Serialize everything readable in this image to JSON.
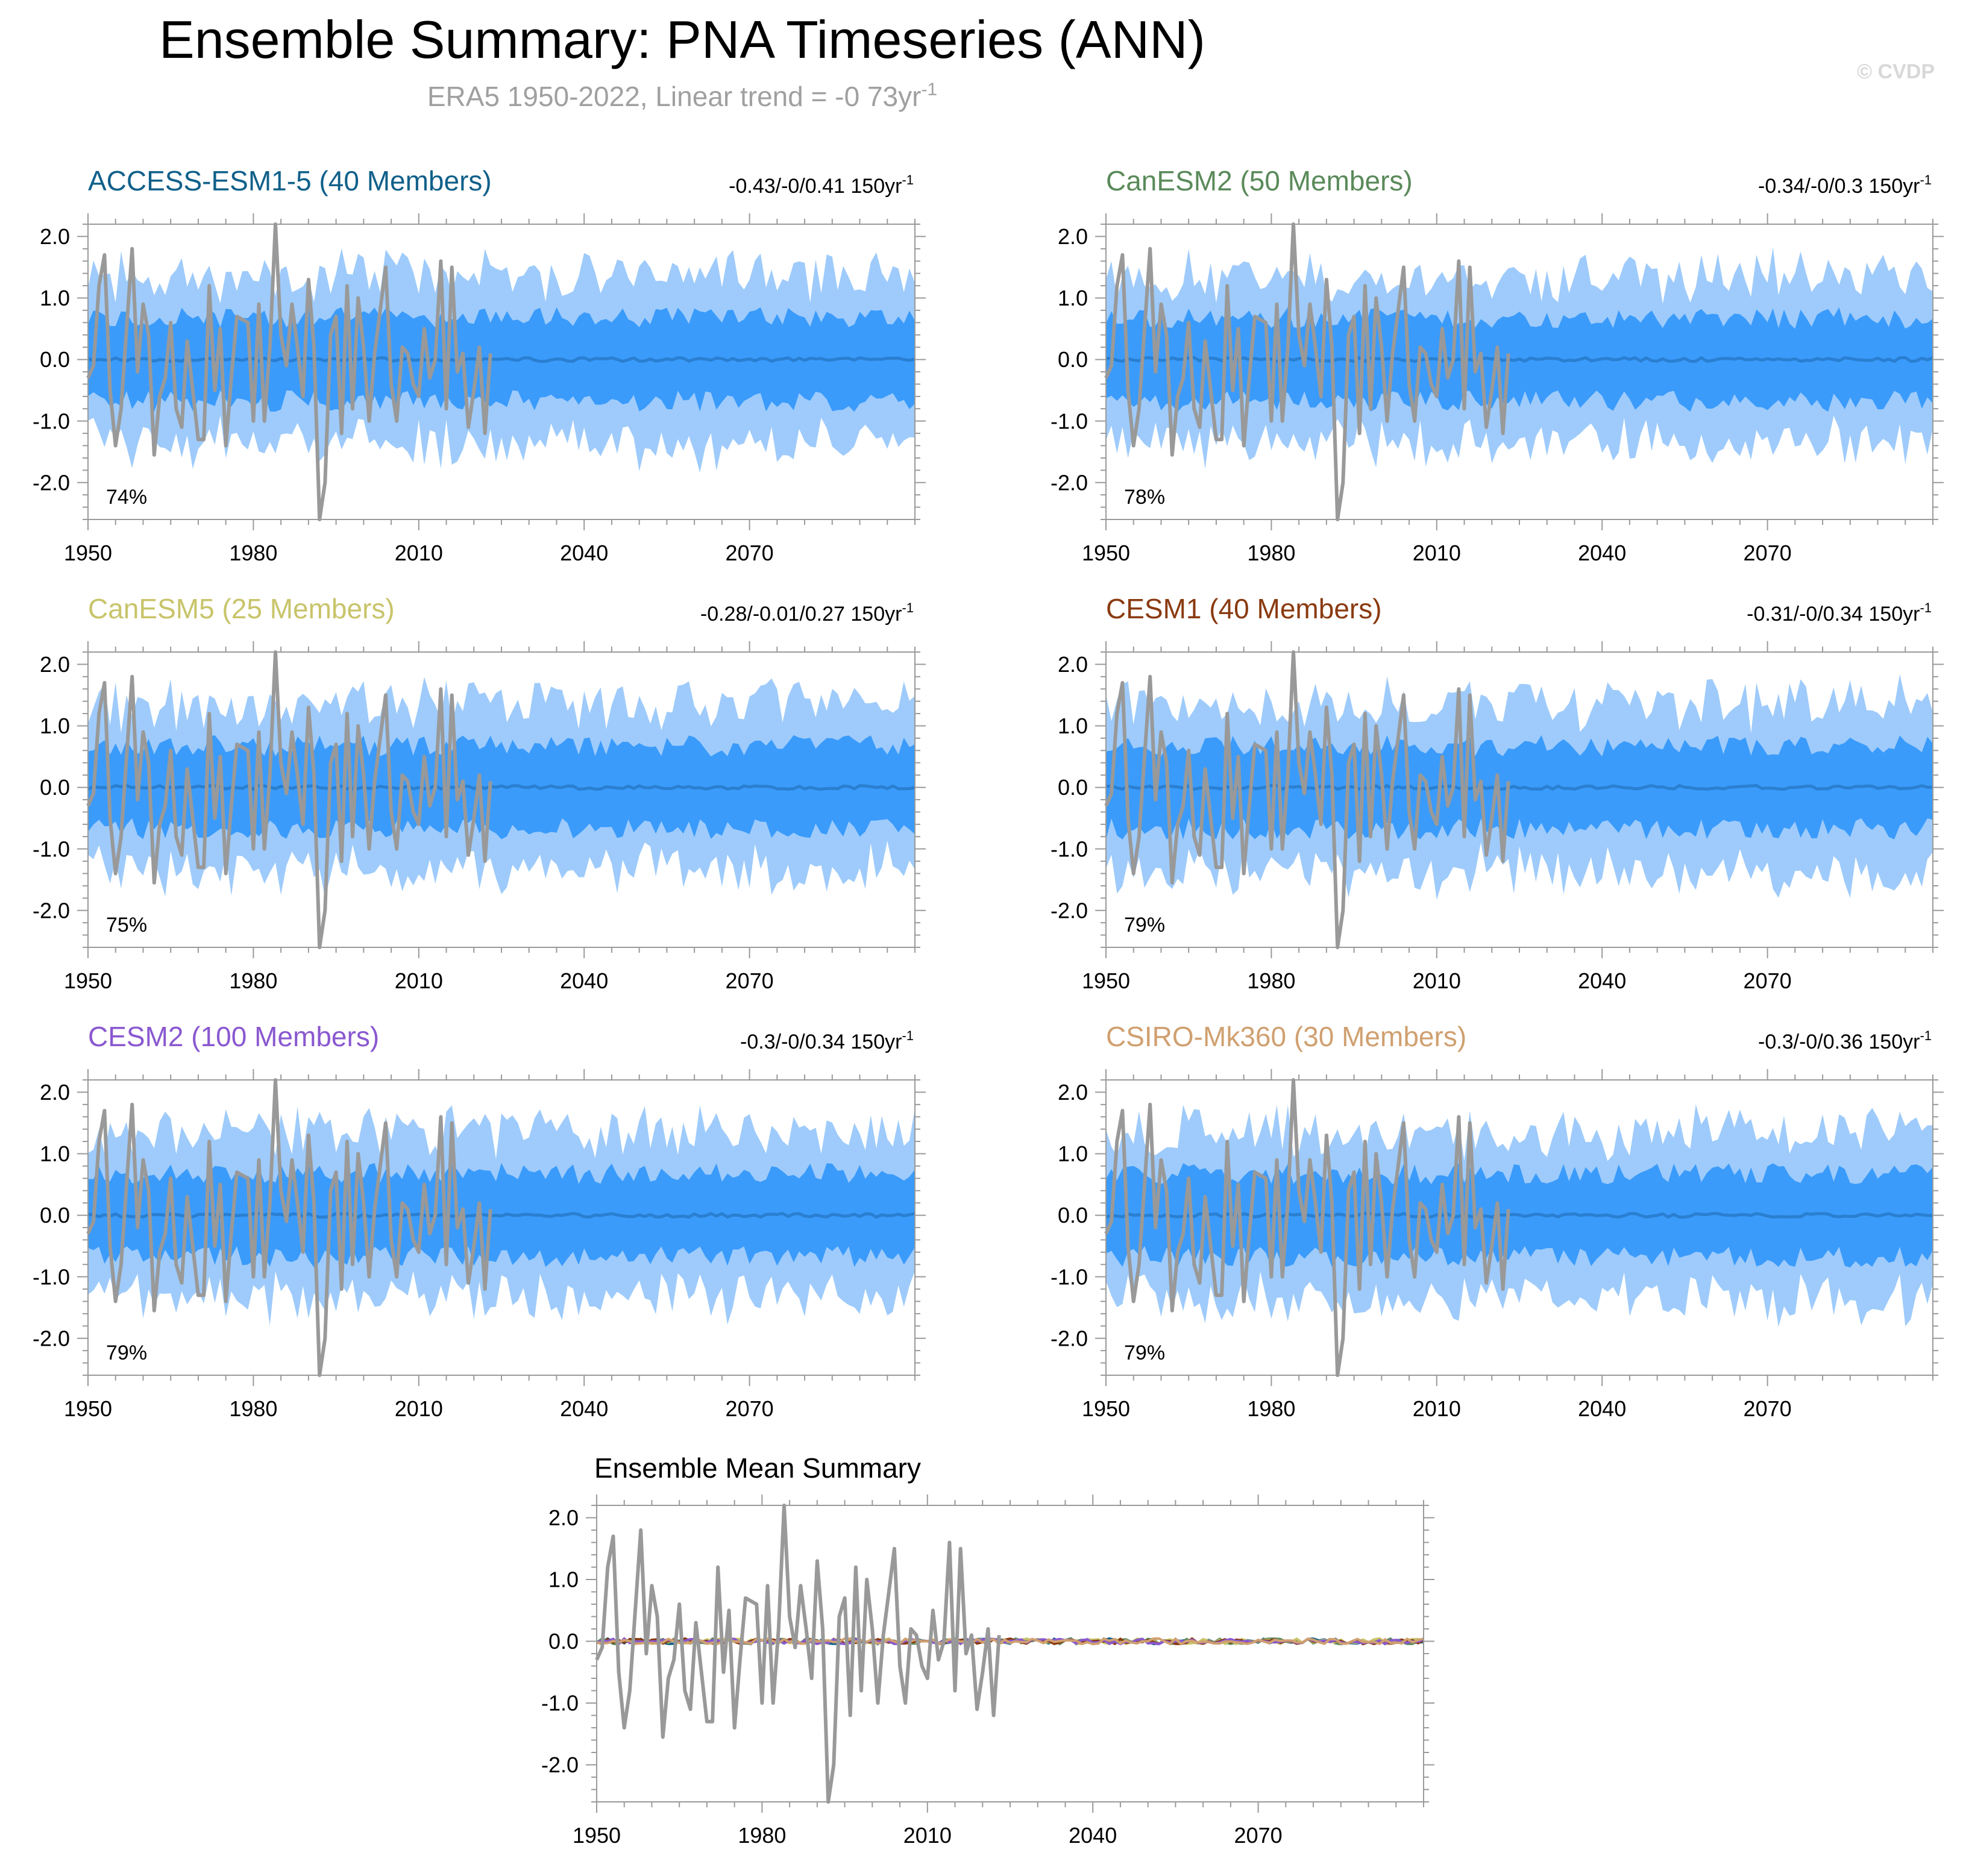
{
  "title": "Ensemble Summary: PNA Timeseries (ANN)",
  "subtitle": {
    "text": "ERA5 1950-2022, Linear trend = -0 73yr",
    "sup": "-1"
  },
  "watermark": "© CVDP",
  "colors": {
    "outer_band": "#9ecbfb",
    "inner_band": "#3a9bfb",
    "ensemble_mean": "#2a7fd0",
    "observations": "#999999",
    "axis": "#9a9a9a",
    "subtitle": "#a0a0a0",
    "watermark": "#d8d8d8"
  },
  "chart_data": {
    "type": "area",
    "x_range": [
      1950,
      2100
    ],
    "x_ticks": [
      1950,
      1980,
      2010,
      2040,
      2070
    ],
    "y_range": [
      -2.6,
      2.2
    ],
    "y_ticks": [
      2.0,
      1.0,
      0.0,
      -1.0,
      -2.0
    ],
    "y_tick_labels": [
      "2.0",
      "1.0",
      "0.0",
      "-1.0",
      "-2.0"
    ],
    "observations": {
      "name": "ERA5",
      "years": [
        1950,
        2022
      ],
      "values": [
        -0.3,
        -0.1,
        1.2,
        1.7,
        -0.5,
        -1.4,
        -0.8,
        0.5,
        1.8,
        -0.2,
        0.9,
        0.4,
        -1.55,
        -0.6,
        -0.3,
        0.6,
        -0.8,
        -1.1,
        0.3,
        -0.5,
        -1.3,
        -1.3,
        1.2,
        -0.5,
        0.5,
        -1.4,
        -0.3,
        0.7,
        0.65,
        0.6,
        -1.0,
        0.9,
        -1.0,
        0.2,
        2.2,
        0.4,
        -0.1,
        0.9,
        0.2,
        -0.6,
        1.3,
        0.2,
        -2.6,
        -2.0,
        0.4,
        0.7,
        -1.2,
        1.2,
        -0.8,
        1.0,
        0.2,
        -1.0,
        0.1,
        0.8,
        1.5,
        -0.4,
        -1.0,
        0.2,
        0.1,
        -0.4,
        -0.6,
        0.5,
        -0.3,
        0.0,
        1.6,
        -0.8,
        1.5,
        -0.2,
        0.1,
        -1.1,
        -0.5,
        0.2,
        -1.2,
        0.1
      ]
    },
    "panels": [
      {
        "model": "ACCESS-ESM1-5 (40 Members)",
        "title_color": "#10608a",
        "trend_text": "-0.43/-0/0.41 150yr",
        "trend_sup": "-1",
        "percent": "74%",
        "seed": 11
      },
      {
        "model": "CanESM2 (50 Members)",
        "title_color": "#5a8a5a",
        "trend_text": "-0.34/-0/0.3 150yr",
        "trend_sup": "-1",
        "percent": "78%",
        "seed": 23
      },
      {
        "model": "CanESM5 (25 Members)",
        "title_color": "#c8c46a",
        "trend_text": "-0.28/-0.01/0.27 150yr",
        "trend_sup": "-1",
        "percent": "75%",
        "seed": 37
      },
      {
        "model": "CESM1 (40 Members)",
        "title_color": "#8a3a10",
        "trend_text": "-0.31/-0/0.34 150yr",
        "trend_sup": "-1",
        "percent": "79%",
        "seed": 41
      },
      {
        "model": "CESM2 (100 Members)",
        "title_color": "#8a58d0",
        "trend_text": "-0.3/-0/0.34 150yr",
        "trend_sup": "-1",
        "percent": "79%",
        "seed": 53
      },
      {
        "model": "CSIRO-Mk360 (30 Members)",
        "title_color": "#d0a070",
        "trend_text": "-0.3/-0/0.36 150yr",
        "trend_sup": "-1",
        "percent": "79%",
        "seed": 67
      }
    ],
    "summary": {
      "title": "Ensemble Mean Summary",
      "line_colors": [
        "#10608a",
        "#5a8a5a",
        "#c8c46a",
        "#8a3a10",
        "#8a58d0",
        "#d0a070"
      ]
    }
  }
}
